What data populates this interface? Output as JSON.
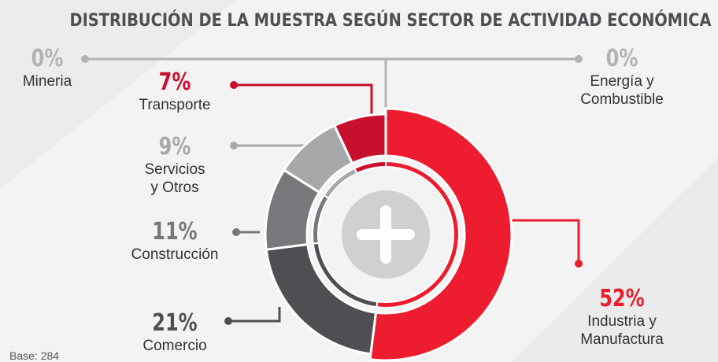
{
  "chart_data": {
    "type": "donut",
    "title": "DISTRIBUCIÓN DE LA MUESTRA SEGÚN SECTOR DE ACTIVIDAD ECONÓMICA",
    "categories": [
      "Industria y\nManufactura",
      "Comercio",
      "Construcción",
      "Servicios\ny Otros",
      "Transporte",
      "Mineria",
      "Energía y\nCombustible"
    ],
    "values": [
      52,
      21,
      11,
      9,
      7,
      0,
      0
    ],
    "value_labels": [
      "52%",
      "21%",
      "11%",
      "9%",
      "7%",
      "0%",
      "0%"
    ],
    "colors": [
      "#ed1c2e",
      "#4d4f53",
      "#77787b",
      "#a7a8aa",
      "#c8102e",
      "#b3b3b3",
      "#b3b3b3"
    ],
    "note": "Base: 284"
  }
}
